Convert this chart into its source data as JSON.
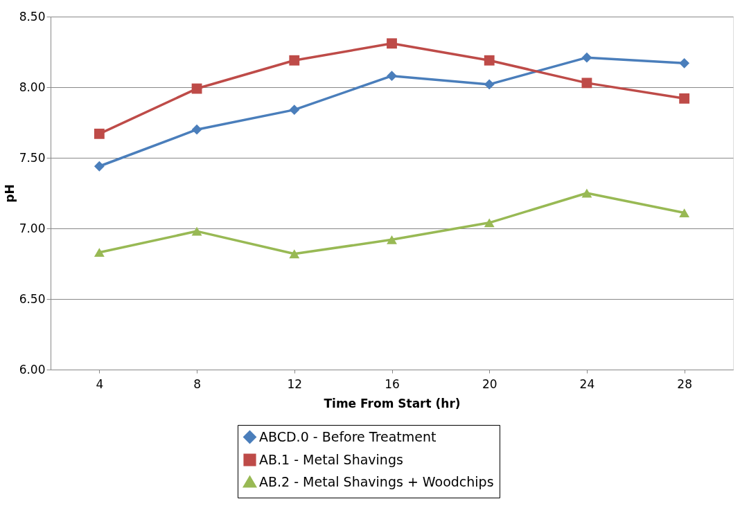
{
  "chart_data": {
    "type": "line",
    "xlabel": "Time From Start (hr)",
    "ylabel": "pH",
    "categories": [
      "4",
      "8",
      "12",
      "16",
      "20",
      "24",
      "28"
    ],
    "series": [
      {
        "name": "ABCD.0 - Before Treatment",
        "color": "#4a7ebb",
        "marker": "diamond",
        "values": [
          7.44,
          7.7,
          7.84,
          8.08,
          8.02,
          8.21,
          8.17
        ]
      },
      {
        "name": "AB.1 - Metal Shavings",
        "color": "#be4b48",
        "marker": "square",
        "values": [
          7.67,
          7.99,
          8.19,
          8.31,
          8.19,
          8.03,
          7.92
        ]
      },
      {
        "name": "AB.2 - Metal Shavings + Woodchips",
        "color": "#98b954",
        "marker": "triangle",
        "values": [
          6.83,
          6.98,
          6.82,
          6.92,
          7.04,
          7.25,
          7.11
        ]
      }
    ],
    "ylim": [
      6.0,
      8.5
    ],
    "yticks": [
      {
        "value": 6.0,
        "label": "6.00"
      },
      {
        "value": 6.5,
        "label": "6.50"
      },
      {
        "value": 7.0,
        "label": "7.00"
      },
      {
        "value": 7.5,
        "label": "7.50"
      },
      {
        "value": 8.0,
        "label": "8.00"
      },
      {
        "value": 8.5,
        "label": "8.50"
      }
    ],
    "grid": "y",
    "legend": "bottom",
    "line_style": "solid"
  }
}
